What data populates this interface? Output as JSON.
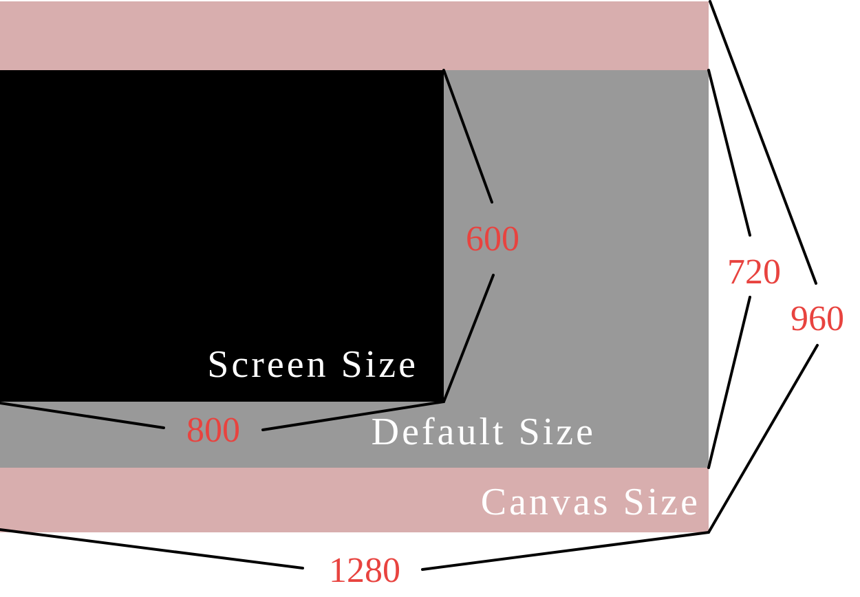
{
  "colors": {
    "canvas": "#d8aeae",
    "default": "#999999",
    "screen": "#000000",
    "region_label": "#ffffff",
    "dimension_label": "#e8433f",
    "dimension_line": "#000000"
  },
  "regions": {
    "screen": {
      "label": "Screen Size",
      "width": "800",
      "height": "600"
    },
    "default": {
      "label": "Default Size",
      "height": "720"
    },
    "canvas": {
      "label": "Canvas Size",
      "width": "1280",
      "height": "960"
    }
  }
}
